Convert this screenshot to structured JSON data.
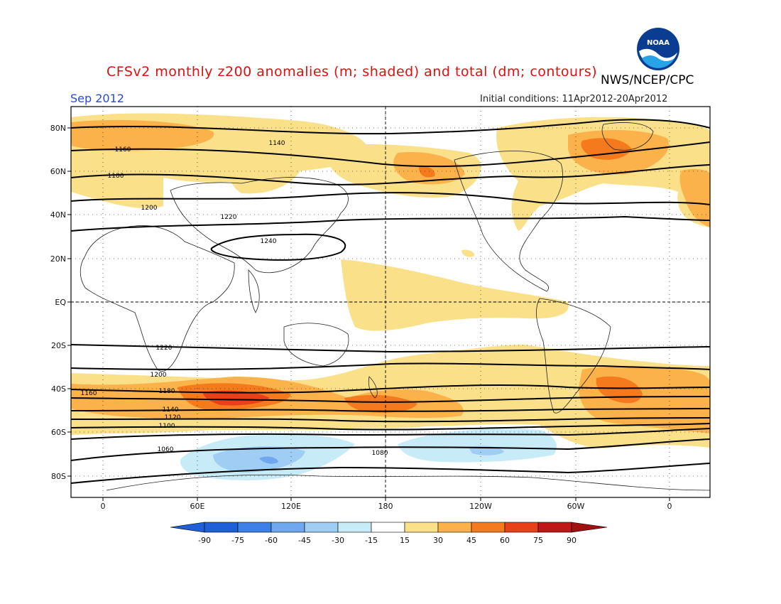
{
  "title": "CFSv2 monthly z200 anomalies (m; shaded) and total (dm; contours)",
  "agency": "NWS/NCEP/CPC",
  "logo_text": "NOAA",
  "month": "Sep 2012",
  "initial_conditions": "Initial conditions: 11Apr2012-20Apr2012",
  "lat_labels": [
    "80N",
    "60N",
    "40N",
    "20N",
    "EQ",
    "20S",
    "40S",
    "60S",
    "80S"
  ],
  "lon_labels": [
    "0",
    "60E",
    "120E",
    "180",
    "120W",
    "60W",
    "0"
  ],
  "colorbar": {
    "labels": [
      "-90",
      "-75",
      "-60",
      "-45",
      "-30",
      "-15",
      "15",
      "30",
      "45",
      "60",
      "75",
      "90"
    ],
    "colors": [
      "#1f5fd8",
      "#3f7fe8",
      "#6fa8ec",
      "#9fcdf4",
      "#c7ecf7",
      "#ffffff",
      "#fbe08a",
      "#fbb24a",
      "#f57a1e",
      "#e8401a",
      "#c01818",
      "#a01010"
    ],
    "low_end_color": "#1f5fd8",
    "high_end_color": "#a01010"
  },
  "contour_labels": [
    "1140",
    "1160",
    "1180",
    "1200",
    "1220",
    "1240",
    "1220",
    "1200",
    "1180",
    "1160",
    "1140",
    "1120",
    "1100",
    "1080",
    "1060"
  ],
  "colors": {
    "title": "#e01010",
    "month": "#2a4ad8",
    "contour": "#000000"
  }
}
